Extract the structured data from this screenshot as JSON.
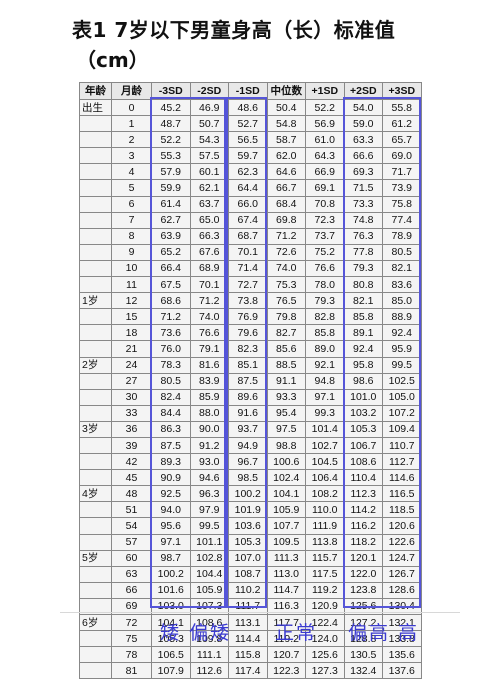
{
  "title": "表1 7岁以下男童身高（长）标准值",
  "subtitle": "（cm）",
  "table": {
    "headers": [
      "年龄",
      "月龄",
      "-3SD",
      "-2SD",
      "-1SD",
      "中位数",
      "+1SD",
      "+2SD",
      "+3SD"
    ],
    "rows": [
      {
        "age": "出生",
        "month": "0",
        "values": [
          "45.2",
          "46.9",
          "48.6",
          "50.4",
          "52.2",
          "54.0",
          "55.8"
        ]
      },
      {
        "age": "",
        "month": "1",
        "values": [
          "48.7",
          "50.7",
          "52.7",
          "54.8",
          "56.9",
          "59.0",
          "61.2"
        ]
      },
      {
        "age": "",
        "month": "2",
        "values": [
          "52.2",
          "54.3",
          "56.5",
          "58.7",
          "61.0",
          "63.3",
          "65.7"
        ]
      },
      {
        "age": "",
        "month": "3",
        "values": [
          "55.3",
          "57.5",
          "59.7",
          "62.0",
          "64.3",
          "66.6",
          "69.0"
        ]
      },
      {
        "age": "",
        "month": "4",
        "values": [
          "57.9",
          "60.1",
          "62.3",
          "64.6",
          "66.9",
          "69.3",
          "71.7"
        ]
      },
      {
        "age": "",
        "month": "5",
        "values": [
          "59.9",
          "62.1",
          "64.4",
          "66.7",
          "69.1",
          "71.5",
          "73.9"
        ]
      },
      {
        "age": "",
        "month": "6",
        "values": [
          "61.4",
          "63.7",
          "66.0",
          "68.4",
          "70.8",
          "73.3",
          "75.8"
        ]
      },
      {
        "age": "",
        "month": "7",
        "values": [
          "62.7",
          "65.0",
          "67.4",
          "69.8",
          "72.3",
          "74.8",
          "77.4"
        ]
      },
      {
        "age": "",
        "month": "8",
        "values": [
          "63.9",
          "66.3",
          "68.7",
          "71.2",
          "73.7",
          "76.3",
          "78.9"
        ]
      },
      {
        "age": "",
        "month": "9",
        "values": [
          "65.2",
          "67.6",
          "70.1",
          "72.6",
          "75.2",
          "77.8",
          "80.5"
        ]
      },
      {
        "age": "",
        "month": "10",
        "values": [
          "66.4",
          "68.9",
          "71.4",
          "74.0",
          "76.6",
          "79.3",
          "82.1"
        ]
      },
      {
        "age": "",
        "month": "11",
        "values": [
          "67.5",
          "70.1",
          "72.7",
          "75.3",
          "78.0",
          "80.8",
          "83.6"
        ]
      },
      {
        "age": "1岁",
        "month": "12",
        "values": [
          "68.6",
          "71.2",
          "73.8",
          "76.5",
          "79.3",
          "82.1",
          "85.0"
        ]
      },
      {
        "age": "",
        "month": "15",
        "values": [
          "71.2",
          "74.0",
          "76.9",
          "79.8",
          "82.8",
          "85.8",
          "88.9"
        ]
      },
      {
        "age": "",
        "month": "18",
        "values": [
          "73.6",
          "76.6",
          "79.6",
          "82.7",
          "85.8",
          "89.1",
          "92.4"
        ]
      },
      {
        "age": "",
        "month": "21",
        "values": [
          "76.0",
          "79.1",
          "82.3",
          "85.6",
          "89.0",
          "92.4",
          "95.9"
        ]
      },
      {
        "age": "2岁",
        "month": "24",
        "values": [
          "78.3",
          "81.6",
          "85.1",
          "88.5",
          "92.1",
          "95.8",
          "99.5"
        ]
      },
      {
        "age": "",
        "month": "27",
        "values": [
          "80.5",
          "83.9",
          "87.5",
          "91.1",
          "94.8",
          "98.6",
          "102.5"
        ]
      },
      {
        "age": "",
        "month": "30",
        "values": [
          "82.4",
          "85.9",
          "89.6",
          "93.3",
          "97.1",
          "101.0",
          "105.0"
        ]
      },
      {
        "age": "",
        "month": "33",
        "values": [
          "84.4",
          "88.0",
          "91.6",
          "95.4",
          "99.3",
          "103.2",
          "107.2"
        ]
      },
      {
        "age": "3岁",
        "month": "36",
        "values": [
          "86.3",
          "90.0",
          "93.7",
          "97.5",
          "101.4",
          "105.3",
          "109.4"
        ]
      },
      {
        "age": "",
        "month": "39",
        "values": [
          "87.5",
          "91.2",
          "94.9",
          "98.8",
          "102.7",
          "106.7",
          "110.7"
        ]
      },
      {
        "age": "",
        "month": "42",
        "values": [
          "89.3",
          "93.0",
          "96.7",
          "100.6",
          "104.5",
          "108.6",
          "112.7"
        ]
      },
      {
        "age": "",
        "month": "45",
        "values": [
          "90.9",
          "94.6",
          "98.5",
          "102.4",
          "106.4",
          "110.4",
          "114.6"
        ]
      },
      {
        "age": "4岁",
        "month": "48",
        "values": [
          "92.5",
          "96.3",
          "100.2",
          "104.1",
          "108.2",
          "112.3",
          "116.5"
        ]
      },
      {
        "age": "",
        "month": "51",
        "values": [
          "94.0",
          "97.9",
          "101.9",
          "105.9",
          "110.0",
          "114.2",
          "118.5"
        ]
      },
      {
        "age": "",
        "month": "54",
        "values": [
          "95.6",
          "99.5",
          "103.6",
          "107.7",
          "111.9",
          "116.2",
          "120.6"
        ]
      },
      {
        "age": "",
        "month": "57",
        "values": [
          "97.1",
          "101.1",
          "105.3",
          "109.5",
          "113.8",
          "118.2",
          "122.6"
        ]
      },
      {
        "age": "5岁",
        "month": "60",
        "values": [
          "98.7",
          "102.8",
          "107.0",
          "111.3",
          "115.7",
          "120.1",
          "124.7"
        ]
      },
      {
        "age": "",
        "month": "63",
        "values": [
          "100.2",
          "104.4",
          "108.7",
          "113.0",
          "117.5",
          "122.0",
          "126.7"
        ]
      },
      {
        "age": "",
        "month": "66",
        "values": [
          "101.6",
          "105.9",
          "110.2",
          "114.7",
          "119.2",
          "123.8",
          "128.6"
        ]
      },
      {
        "age": "",
        "month": "69",
        "values": [
          "103.0",
          "107.3",
          "111.7",
          "116.3",
          "120.9",
          "125.6",
          "130.4"
        ]
      },
      {
        "age": "6岁",
        "month": "72",
        "values": [
          "104.1",
          "108.6",
          "113.1",
          "117.7",
          "122.4",
          "127.2",
          "132.1"
        ]
      },
      {
        "age": "",
        "month": "75",
        "values": [
          "105.3",
          "109.8",
          "114.4",
          "119.2",
          "124.0",
          "128.8",
          "133.8"
        ]
      },
      {
        "age": "",
        "month": "78",
        "values": [
          "106.5",
          "111.1",
          "115.8",
          "120.7",
          "125.6",
          "130.5",
          "135.6"
        ]
      },
      {
        "age": "",
        "month": "81",
        "values": [
          "107.9",
          "112.6",
          "117.4",
          "122.3",
          "127.3",
          "132.4",
          "137.6"
        ]
      }
    ]
  },
  "legend": {
    "short": "矮 偏矮",
    "normal": "正常",
    "tall": "偏高 高"
  },
  "colors": {
    "highlight": "#4d4dd6",
    "legend_text": "#3b3bd0"
  }
}
